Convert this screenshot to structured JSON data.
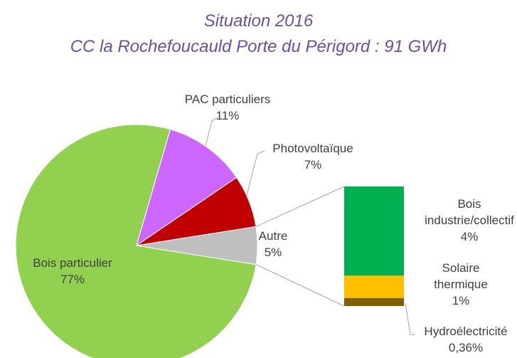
{
  "chart_data": {
    "type": "pie",
    "title": "Situation 2016",
    "subtitle": "CC la Rochefoucauld Porte du Périgord : 91 GWh",
    "categories": [
      "Bois particulier",
      "PAC particuliers",
      "Photovoltaïque",
      "Autre"
    ],
    "values": [
      77,
      11,
      7,
      5
    ],
    "value_labels": [
      "77%",
      "11%",
      "7%",
      "5%"
    ],
    "colors": [
      "#92d050",
      "#cc66ff",
      "#c00000",
      "#bfbfbf"
    ],
    "breakdown": {
      "categories": [
        "Bois industrie/collectif",
        "Solaire thermique",
        "Hydroélectricité"
      ],
      "values": [
        4,
        1,
        0.36
      ],
      "value_labels": [
        "4%",
        "1%",
        "0,36%"
      ],
      "colors": [
        "#00b050",
        "#ffc000",
        "#7f6000"
      ]
    }
  }
}
